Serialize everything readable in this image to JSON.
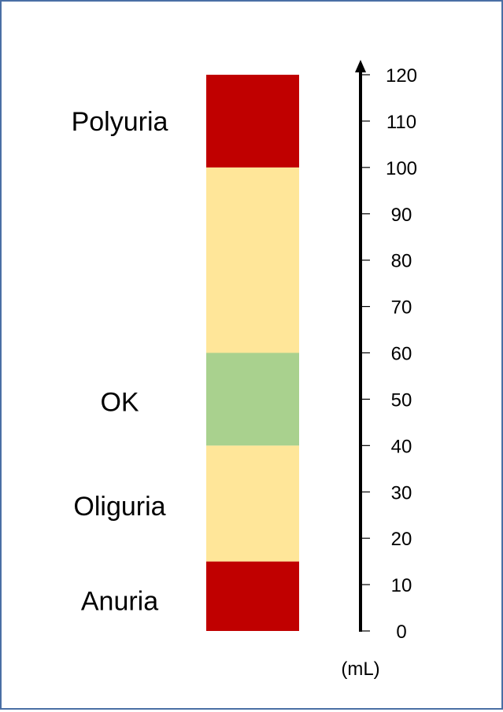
{
  "chart_data": {
    "type": "bar",
    "unit_label": "(mL)",
    "axis": {
      "min": 0,
      "max": 120,
      "ticks": [
        0,
        10,
        20,
        30,
        40,
        50,
        60,
        70,
        80,
        90,
        100,
        110,
        120
      ]
    },
    "bands": [
      {
        "from": 0,
        "to": 15,
        "color": "#c00000"
      },
      {
        "from": 15,
        "to": 40,
        "color": "#ffe699"
      },
      {
        "from": 40,
        "to": 60,
        "color": "#a9d18e"
      },
      {
        "from": 60,
        "to": 100,
        "color": "#ffe699"
      },
      {
        "from": 100,
        "to": 120,
        "color": "#c00000"
      }
    ],
    "labels": [
      {
        "text": "Polyuria",
        "value": 110
      },
      {
        "text": "OK",
        "value": 49.5
      },
      {
        "text": "Oliguria",
        "value": 27
      },
      {
        "text": "Anuria",
        "value": 6.5
      }
    ],
    "colors": {
      "frame": "#4a6fa5",
      "axis": "#000000"
    }
  }
}
